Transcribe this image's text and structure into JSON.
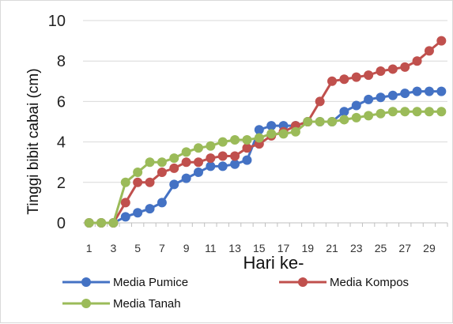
{
  "chart_data": {
    "type": "line",
    "xlabel": "Hari ke-",
    "ylabel": "Tinggi bibit cabai (cm)",
    "ylim": [
      0,
      10
    ],
    "yticks": [
      "0",
      "2",
      "4",
      "6",
      "8",
      "10"
    ],
    "x": [
      1,
      2,
      3,
      4,
      5,
      6,
      7,
      8,
      9,
      10,
      11,
      12,
      13,
      14,
      15,
      16,
      17,
      18,
      19,
      20,
      21,
      22,
      23,
      24,
      25,
      26,
      27,
      28,
      29,
      30
    ],
    "xtick_labels": [
      "1",
      "3",
      "5",
      "7",
      "9",
      "11",
      "13",
      "15",
      "17",
      "19",
      "21",
      "23",
      "25",
      "27",
      "29"
    ],
    "xtick_values": [
      1,
      3,
      5,
      7,
      9,
      11,
      13,
      15,
      17,
      19,
      21,
      23,
      25,
      27,
      29
    ],
    "grid": "horizontal",
    "legend_position": "bottom",
    "series": [
      {
        "name": "Media Pumice",
        "color": "#4472c4",
        "values": [
          0,
          0,
          0,
          0.3,
          0.5,
          0.7,
          1.0,
          1.9,
          2.2,
          2.5,
          2.8,
          2.8,
          2.9,
          3.1,
          4.6,
          4.8,
          4.8,
          4.8,
          5.0,
          5.0,
          5.0,
          5.5,
          5.8,
          6.1,
          6.2,
          6.3,
          6.4,
          6.5,
          6.5,
          6.5
        ]
      },
      {
        "name": "Media Kompos",
        "color": "#c0504d",
        "values": [
          0,
          0,
          0,
          1.0,
          2.0,
          2.0,
          2.5,
          2.7,
          3.0,
          3.0,
          3.2,
          3.3,
          3.3,
          3.7,
          3.9,
          4.3,
          4.5,
          4.8,
          5.0,
          6.0,
          7.0,
          7.1,
          7.2,
          7.3,
          7.5,
          7.6,
          7.7,
          8.0,
          8.5,
          9.0
        ]
      },
      {
        "name": "Media Tanah",
        "color": "#9bbb59",
        "values": [
          0,
          0,
          0,
          2.0,
          2.5,
          3.0,
          3.0,
          3.2,
          3.5,
          3.7,
          3.8,
          4.0,
          4.1,
          4.1,
          4.2,
          4.4,
          4.4,
          4.5,
          5.0,
          5.0,
          5.0,
          5.1,
          5.2,
          5.3,
          5.4,
          5.5,
          5.5,
          5.5,
          5.5,
          5.5
        ]
      }
    ]
  }
}
